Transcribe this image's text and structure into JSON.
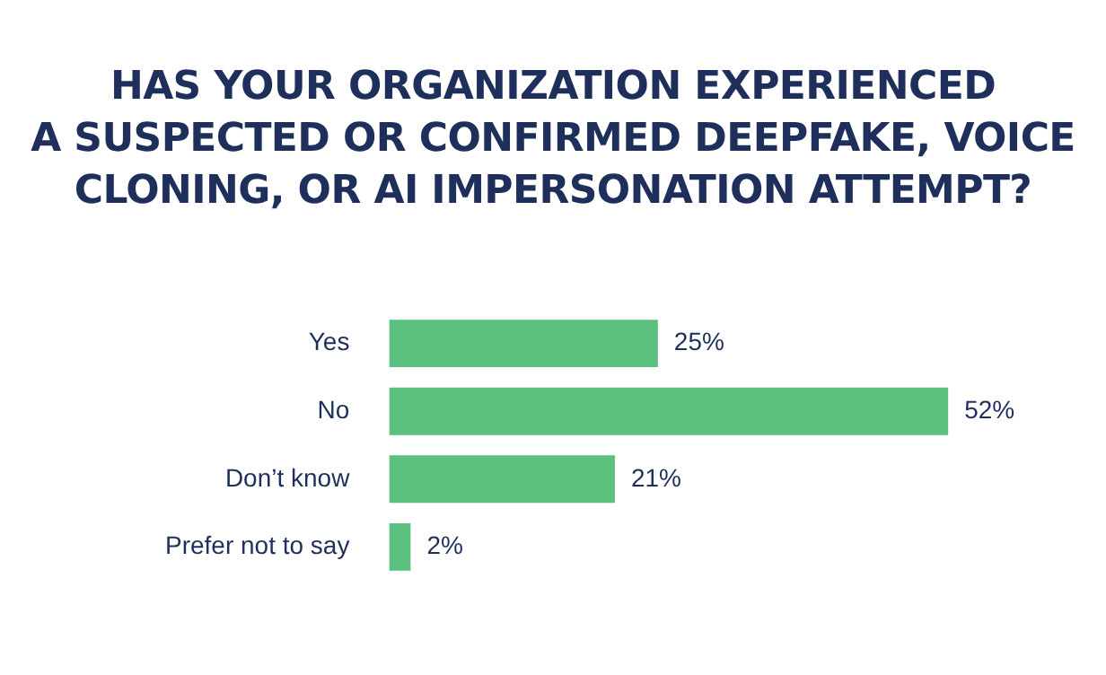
{
  "chart_data": {
    "type": "bar",
    "orientation": "horizontal",
    "title": "HAS YOUR ORGANIZATION EXPERIENCED\nA SUSPECTED OR CONFIRMED DEEPFAKE, VOICE\nCLONING, OR AI IMPERSONATION ATTEMPT?",
    "categories": [
      "Yes",
      "No",
      "Don’t know",
      "Prefer not to say"
    ],
    "values": [
      25,
      52,
      21,
      2
    ],
    "value_labels": [
      "25%",
      "52%",
      "21%",
      "2%"
    ],
    "color": "#5bbf7e",
    "grid": false,
    "legend": false
  }
}
